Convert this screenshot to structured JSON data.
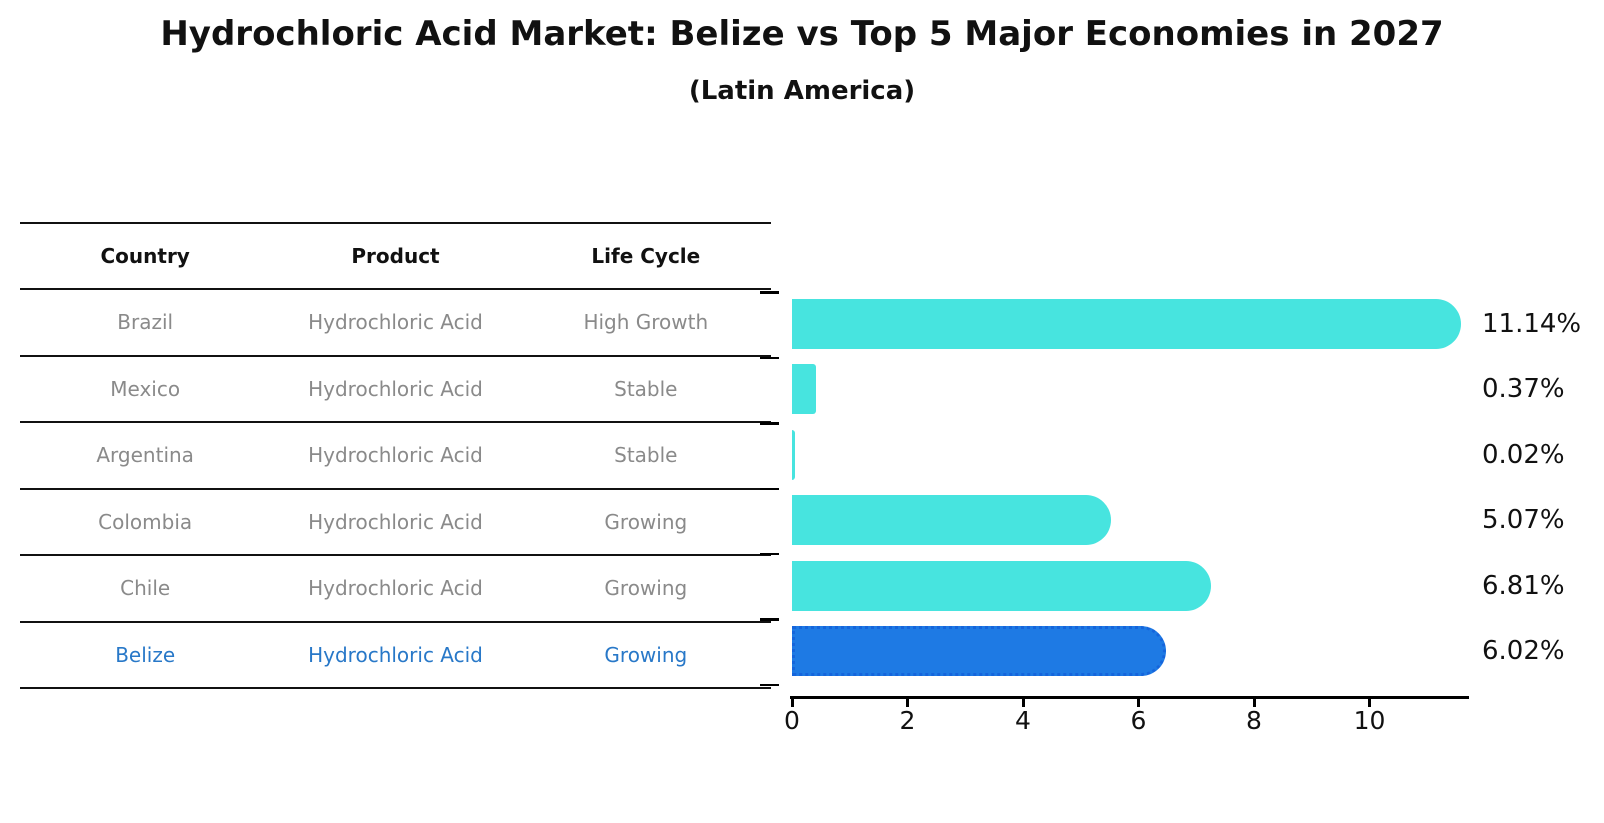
{
  "title": "Hydrochloric Acid Market: Belize vs Top 5 Major Economies in 2027",
  "subtitle": "(Latin America)",
  "table": {
    "headers": [
      "Country",
      "Product",
      "Life Cycle"
    ],
    "rows": [
      {
        "country": "Brazil",
        "product": "Hydrochloric Acid",
        "life_cycle": "High Growth",
        "highlight": false
      },
      {
        "country": "Mexico",
        "product": "Hydrochloric Acid",
        "life_cycle": "Stable",
        "highlight": false
      },
      {
        "country": "Argentina",
        "product": "Hydrochloric Acid",
        "life_cycle": "Stable",
        "highlight": false
      },
      {
        "country": "Colombia",
        "product": "Hydrochloric Acid",
        "life_cycle": "Growing",
        "highlight": false
      },
      {
        "country": "Chile",
        "product": "Hydrochloric Acid",
        "life_cycle": "Growing",
        "highlight": false
      },
      {
        "country": "Belize",
        "product": "Hydrochloric Acid",
        "life_cycle": "Growing",
        "highlight": true
      }
    ]
  },
  "chart_data": {
    "type": "bar",
    "orientation": "horizontal",
    "categories": [
      "Brazil",
      "Mexico",
      "Argentina",
      "Colombia",
      "Chile",
      "Belize"
    ],
    "values": [
      11.14,
      0.37,
      0.02,
      5.07,
      6.81,
      6.02
    ],
    "value_labels": [
      "11.14%",
      "0.37%",
      "0.02%",
      "5.07%",
      "6.81%",
      "6.02%"
    ],
    "x_ticks": [
      0,
      2,
      4,
      6,
      8,
      10
    ],
    "x_tick_labels": [
      "0",
      "2",
      "4",
      "6",
      "8",
      "10"
    ],
    "xlim": [
      0,
      11.75
    ],
    "grid": false,
    "legend": false,
    "highlight_index": 5,
    "unit": "percent"
  },
  "colors": {
    "bar": "#47e4df",
    "highlight_bar": "#1e7ae4",
    "highlight_border": "#1565dc",
    "highlight_text": "#2878c8",
    "row_text": "#8a8a8a",
    "header_text": "#111111",
    "axis": "#000000",
    "background": "#ffffff"
  }
}
